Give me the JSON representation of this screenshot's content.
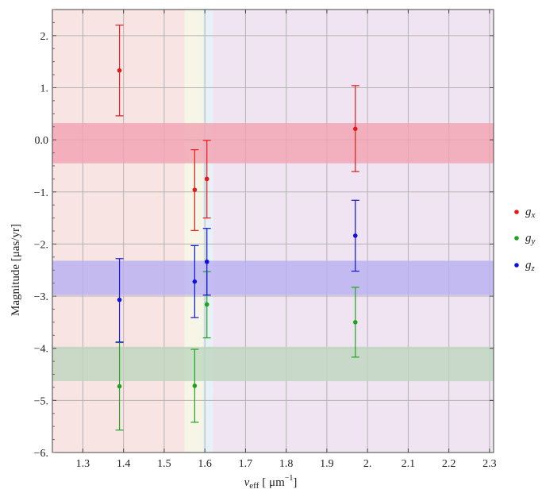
{
  "chart_data": {
    "type": "scatter",
    "title": "",
    "xlabel": {
      "main": "ν",
      "sub": "eff",
      "unit": "[ μm",
      "sup": "−1",
      "close": "]"
    },
    "ylabel": "Magnitude [μas/yr]",
    "xlim": [
      1.225,
      2.31
    ],
    "ylim": [
      -6,
      2.5
    ],
    "grid": true,
    "x_ticks": [
      1.3,
      1.4,
      1.5,
      1.6,
      1.7,
      1.8,
      1.9,
      2.0,
      2.1,
      2.2,
      2.3
    ],
    "x_tick_labels": [
      "1.3",
      "1.4",
      "1.5",
      "1.6",
      "1.7",
      "1.8",
      "1.9",
      "2.",
      "2.1",
      "2.2",
      "2.3"
    ],
    "y_ticks": [
      -6,
      -5,
      -4,
      -3,
      -2,
      -1,
      0,
      1,
      2
    ],
    "y_tick_labels": [
      "−6.",
      "−5.",
      "−4.",
      "−3.",
      "−2.",
      "−1.",
      "0.0",
      "1.",
      "2."
    ],
    "background_bands": [
      {
        "x0": 1.225,
        "x1": 1.55,
        "color": "#f9e4e4"
      },
      {
        "x0": 1.55,
        "x1": 1.595,
        "color": "#f7f6e6"
      },
      {
        "x0": 1.595,
        "x1": 1.6,
        "color": "#e4f3ee"
      },
      {
        "x0": 1.6,
        "x1": 1.62,
        "color": "#e6f1f7"
      },
      {
        "x0": 1.62,
        "x1": 2.31,
        "color": "#f0e4f2"
      }
    ],
    "horizontal_bands": [
      {
        "series": "g_x",
        "y0": -0.45,
        "y1": 0.32,
        "color": "#f2a3b2"
      },
      {
        "series": "g_z",
        "y0": -2.98,
        "y1": -2.32,
        "color": "#b9b1f2"
      },
      {
        "series": "g_y",
        "y0": -4.63,
        "y1": -3.97,
        "color": "#bfd7bf"
      }
    ],
    "series": [
      {
        "name": "g",
        "sub": "x",
        "color": "#e31a1c",
        "points": [
          {
            "x": 1.39,
            "y": 1.33,
            "lo": 0.46,
            "hi": 2.2
          },
          {
            "x": 1.575,
            "y": -0.96,
            "lo": -1.74,
            "hi": -0.19
          },
          {
            "x": 1.605,
            "y": -0.75,
            "lo": -1.5,
            "hi": -0.01
          },
          {
            "x": 1.97,
            "y": 0.21,
            "lo": -0.61,
            "hi": 1.04
          }
        ]
      },
      {
        "name": "g",
        "sub": "y",
        "color": "#1fa31f",
        "points": [
          {
            "x": 1.39,
            "y": -4.73,
            "lo": -5.57,
            "hi": -3.89
          },
          {
            "x": 1.575,
            "y": -4.72,
            "lo": -5.42,
            "hi": -4.02
          },
          {
            "x": 1.605,
            "y": -3.16,
            "lo": -3.8,
            "hi": -2.53
          },
          {
            "x": 1.97,
            "y": -3.5,
            "lo": -4.17,
            "hi": -2.83
          }
        ]
      },
      {
        "name": "g",
        "sub": "z",
        "color": "#1010e0",
        "points": [
          {
            "x": 1.39,
            "y": -3.07,
            "lo": -3.88,
            "hi": -2.28
          },
          {
            "x": 1.575,
            "y": -2.72,
            "lo": -3.41,
            "hi": -2.03
          },
          {
            "x": 1.605,
            "y": -2.34,
            "lo": -2.98,
            "hi": -1.7
          },
          {
            "x": 1.97,
            "y": -1.84,
            "lo": -2.52,
            "hi": -1.16
          }
        ]
      }
    ],
    "legend_position": "right"
  }
}
